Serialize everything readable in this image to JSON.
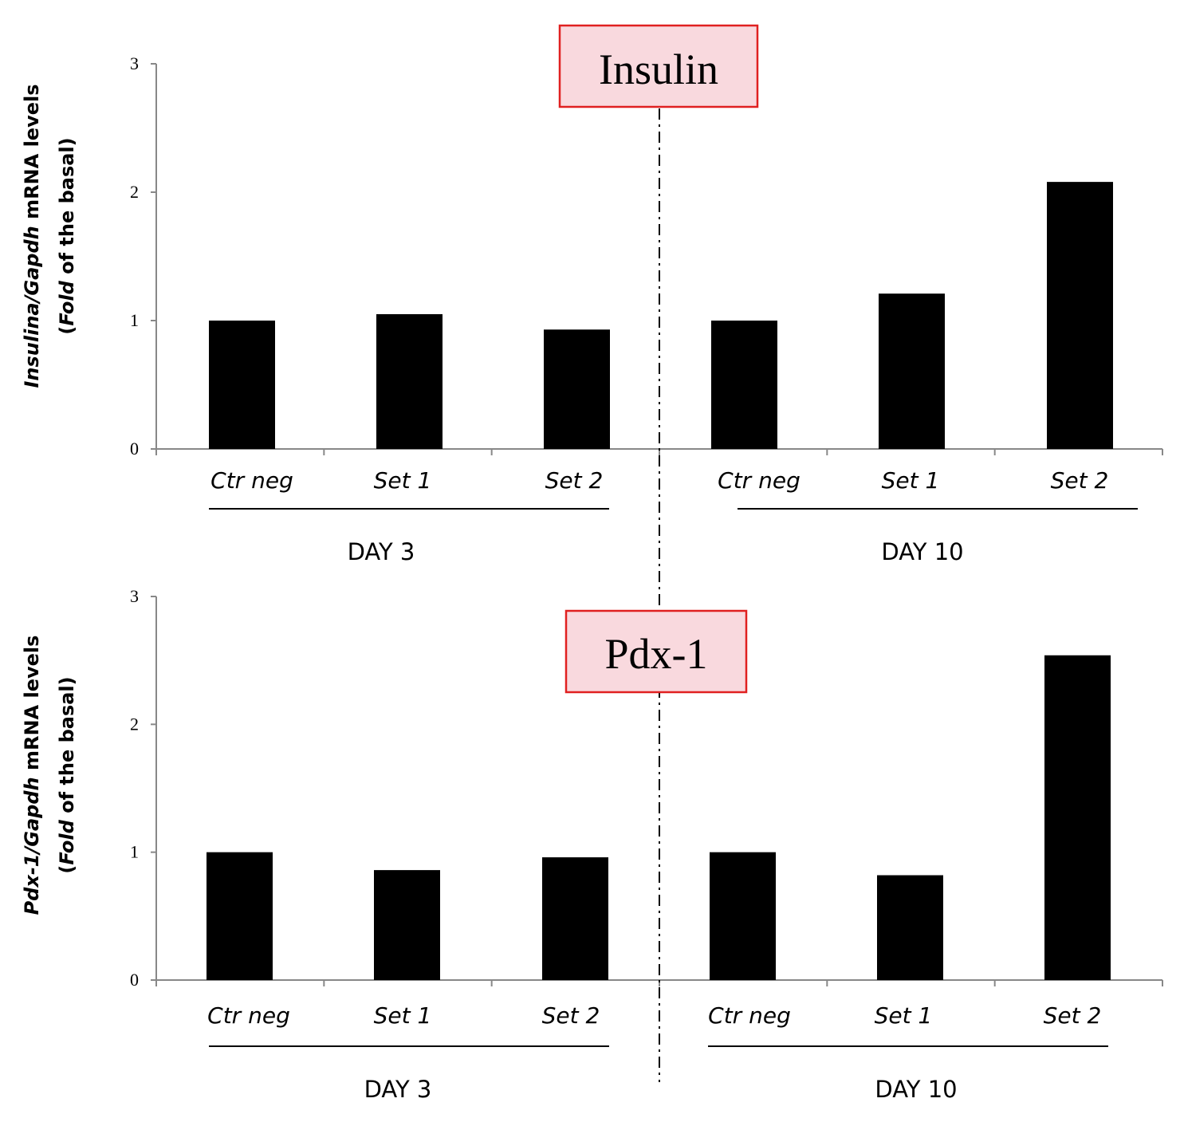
{
  "chart_data": [
    {
      "type": "bar",
      "title": "Insulin",
      "ylabel": {
        "line1": [
          {
            "text": "Insulina/Gapdh",
            "italic": true
          },
          {
            "text": " mRNA levels",
            "italic": false
          }
        ],
        "line2": [
          {
            "text": "(",
            "italic": false
          },
          {
            "text": "Fold",
            "italic": true
          },
          {
            "text": " of the basal)",
            "italic": false
          }
        ]
      },
      "ylim": [
        0,
        3
      ],
      "yticks": [
        "0",
        "1",
        "2",
        "3"
      ],
      "categories": [
        "Ctr neg",
        "Set 1",
        "Set 2",
        "Ctr neg",
        "Set 1",
        "Set 2"
      ],
      "values": [
        1.0,
        1.05,
        0.93,
        1.0,
        1.21,
        2.08
      ],
      "groups": [
        {
          "label": "DAY 3",
          "categories": [
            0,
            1,
            2
          ]
        },
        {
          "label": "DAY 10",
          "categories": [
            3,
            4,
            5
          ]
        }
      ],
      "colors": {
        "bar": "#000000",
        "title_box_fill": "#f9d9de",
        "title_box_border": "#e02020"
      }
    },
    {
      "type": "bar",
      "title": "Pdx-1",
      "ylabel": {
        "line1": [
          {
            "text": "Pdx-1/Gapdh",
            "italic": true
          },
          {
            "text": " mRNA levels",
            "italic": false
          }
        ],
        "line2": [
          {
            "text": "(",
            "italic": false
          },
          {
            "text": "Fold",
            "italic": true
          },
          {
            "text": " of the basal)",
            "italic": false
          }
        ]
      },
      "ylim": [
        0,
        3
      ],
      "yticks": [
        "0",
        "1",
        "2",
        "3"
      ],
      "categories": [
        "Ctr neg",
        "Set 1",
        "Set 2",
        "Ctr neg",
        "Set 1",
        "Set 2"
      ],
      "values": [
        1.0,
        0.86,
        0.96,
        1.0,
        0.82,
        2.54
      ],
      "groups": [
        {
          "label": "DAY 3",
          "categories": [
            0,
            1,
            2
          ]
        },
        {
          "label": "DAY 10",
          "categories": [
            3,
            4,
            5
          ]
        }
      ],
      "colors": {
        "bar": "#000000",
        "title_box_fill": "#f9d9de",
        "title_box_border": "#e02020"
      }
    }
  ]
}
